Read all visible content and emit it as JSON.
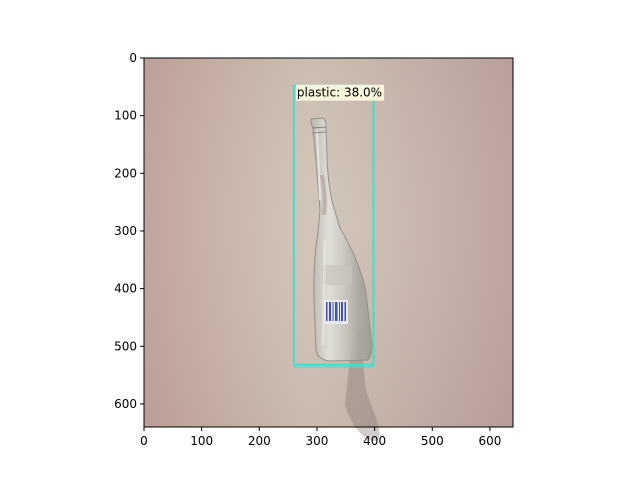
{
  "image": {
    "width": 640,
    "height": 640,
    "description_colors": {
      "background_left": "#c7aba5",
      "background_center": "#cfc4b6",
      "background_right": "#c0a8a4"
    }
  },
  "axes": {
    "x_ticks": [
      0,
      100,
      200,
      300,
      400,
      500,
      600
    ],
    "y_ticks": [
      0,
      100,
      200,
      300,
      400,
      500,
      600
    ],
    "xlim": [
      0,
      640
    ],
    "ylim": [
      640,
      0
    ]
  },
  "detections": [
    {
      "label": "plastic: 38.0%",
      "box": {
        "xmin": 260,
        "ymin": 48,
        "xmax": 398,
        "ymax": 532
      },
      "color": "#40e0d0"
    }
  ]
}
